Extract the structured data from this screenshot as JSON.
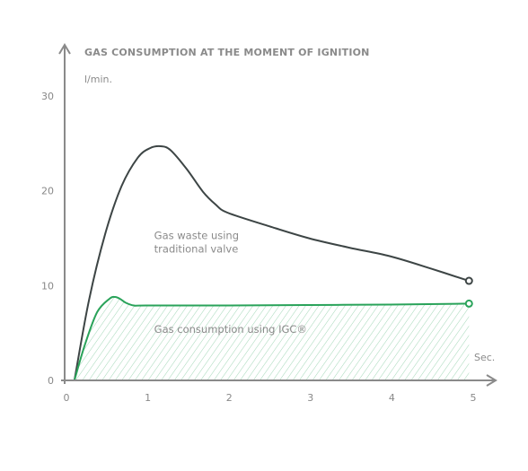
{
  "chart_data": {
    "type": "line",
    "title": "GAS CONSUMPTION AT THE MOMENT OF IGNITION",
    "ylabel": "l/min.",
    "xlabel": "Sec.",
    "xlim": [
      0,
      5
    ],
    "ylim": [
      0,
      30
    ],
    "x_ticks": [
      "0",
      "1",
      "2",
      "3",
      "4",
      "5"
    ],
    "y_ticks": [
      "0",
      "10",
      "20",
      "30"
    ],
    "grid": false,
    "series": [
      {
        "color": "#3d4545",
        "x": [
          0.12,
          0.3,
          0.5,
          0.7,
          0.9,
          1.05,
          1.18,
          1.3,
          1.5,
          1.7,
          1.85,
          2.0,
          2.5,
          3.0,
          3.5,
          4.0,
          4.5,
          4.97
        ],
        "y": [
          0,
          8.5,
          15.5,
          20.5,
          23.5,
          24.5,
          24.7,
          24.3,
          22.3,
          19.9,
          18.6,
          17.7,
          16.3,
          15.0,
          14.0,
          13.1,
          11.8,
          10.5
        ]
      },
      {
        "color": "#2aa35a",
        "x": [
          0.12,
          0.25,
          0.4,
          0.55,
          0.62,
          0.68,
          0.75,
          0.85,
          1.0,
          2.0,
          3.0,
          4.0,
          4.97
        ],
        "y": [
          0,
          3.8,
          7.2,
          8.6,
          8.8,
          8.6,
          8.2,
          7.9,
          7.9,
          7.9,
          7.95,
          8.0,
          8.1
        ]
      }
    ],
    "annotations": [
      {
        "text_lines": [
          "Gas waste using",
          "traditional valve"
        ],
        "x": 1.1,
        "y": 13.0
      },
      {
        "text_lines": [
          "Gas consumption using IGC®"
        ],
        "x": 1.1,
        "y": 5.0
      }
    ]
  }
}
